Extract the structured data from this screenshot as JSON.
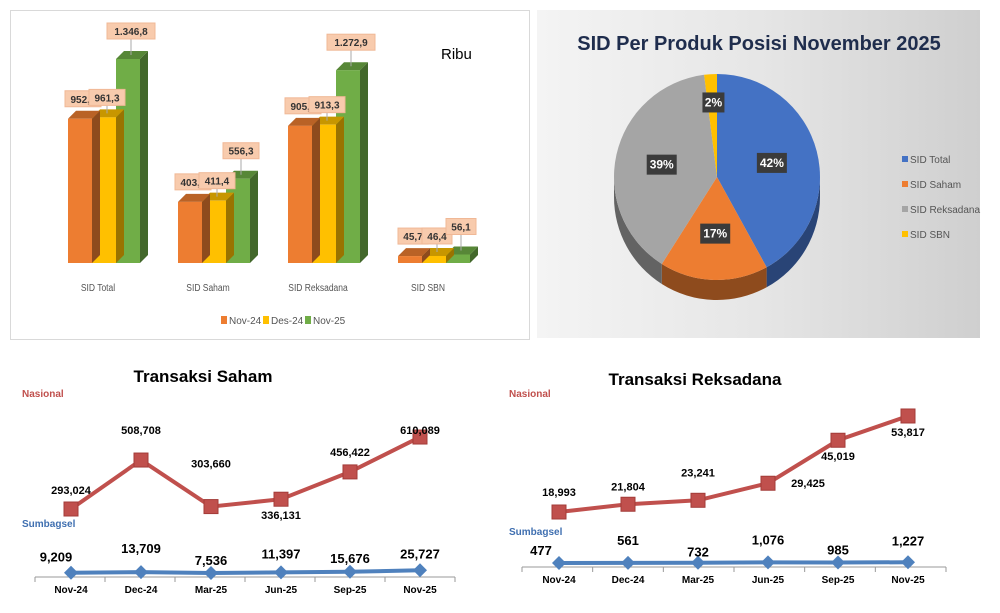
{
  "chart_data": [
    {
      "type": "bar",
      "variant": "3d-clustered",
      "unit_label": "Ribu",
      "categories": [
        "SID Total",
        "SID Saham",
        "SID Reksadana",
        "SID SBN"
      ],
      "series": [
        {
          "name": "Nov-24",
          "color": "#ED7D31",
          "values": [
            952.3,
            403.6,
            905.6,
            45.7
          ],
          "labels": [
            "952,3",
            "403,6",
            "905,6",
            "45,7"
          ]
        },
        {
          "name": "Des-24",
          "color": "#FFC000",
          "values": [
            961.3,
            411.4,
            913.3,
            46.4
          ],
          "labels": [
            "961,3",
            "411,4",
            "913,3",
            "46,4"
          ]
        },
        {
          "name": "Nov-25",
          "color": "#70AD47",
          "values": [
            1346.8,
            556.3,
            1272.9,
            56.1
          ],
          "labels": [
            "1.346,8",
            "556,3",
            "1.272,9",
            "56,1"
          ]
        }
      ],
      "legend": "bottom",
      "grid": false
    },
    {
      "type": "pie",
      "variant": "3d",
      "title": "SID Per Produk Posisi November 2025",
      "slices": [
        {
          "name": "SID Total",
          "value": 42,
          "label": "42%",
          "color": "#4472C4"
        },
        {
          "name": "SID Saham",
          "value": 17,
          "label": "17%",
          "color": "#ED7D31"
        },
        {
          "name": "SID Reksadana",
          "value": 39,
          "label": "39%",
          "color": "#A5A5A5"
        },
        {
          "name": "SID SBN",
          "value": 2,
          "label": "2%",
          "color": "#FFC000"
        }
      ],
      "legend": "right"
    },
    {
      "type": "line",
      "title": "Transaksi Saham",
      "categories": [
        "Nov-24",
        "Dec-24",
        "Mar-25",
        "Jun-25",
        "Sep-25",
        "Nov-25"
      ],
      "series": [
        {
          "name": "Nasional",
          "color": "#C0504D",
          "marker": "square",
          "values": [
            293024,
            508708,
            303660,
            336131,
            456422,
            610089
          ],
          "labels": [
            "293,024",
            "508,708",
            "303,660",
            "336,131",
            "456,422",
            "610,089"
          ]
        },
        {
          "name": "Sumbagsel",
          "color": "#4F81BD",
          "marker": "diamond",
          "values": [
            9209,
            13709,
            7536,
            11397,
            15676,
            25727
          ],
          "labels": [
            "9,209",
            "13,709",
            "7,536",
            "11,397",
            "15,676",
            "25,727"
          ]
        }
      ]
    },
    {
      "type": "line",
      "title": "Transaksi Reksadana",
      "categories": [
        "Nov-24",
        "Dec-24",
        "Mar-25",
        "Jun-25",
        "Sep-25",
        "Nov-25"
      ],
      "series": [
        {
          "name": "Nasional",
          "color": "#C0504D",
          "marker": "square",
          "values": [
            18993,
            21804,
            23241,
            29425,
            45019,
            53817
          ],
          "labels": [
            "18,993",
            "21,804",
            "23,241",
            "29,425",
            "45,019",
            "53,817"
          ]
        },
        {
          "name": "Sumbagsel",
          "color": "#4F81BD",
          "marker": "diamond",
          "values": [
            477,
            561,
            732,
            1076,
            985,
            1227
          ],
          "labels": [
            "477",
            "561",
            "732",
            "1,076",
            "985",
            "1,227"
          ]
        }
      ]
    }
  ]
}
